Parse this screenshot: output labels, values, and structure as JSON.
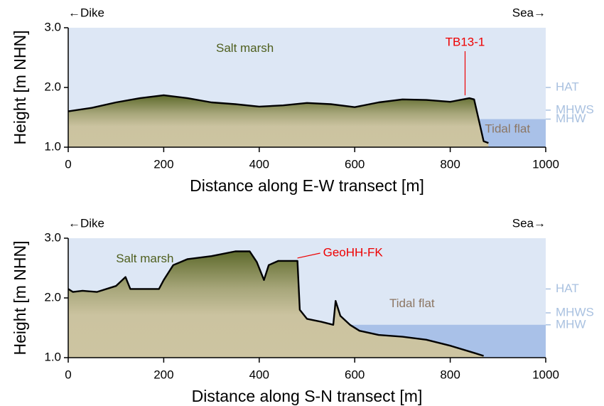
{
  "chart_data": [
    {
      "type": "area",
      "x_label": "Distance along E-W transect [m]",
      "y_label": "Height [m NHN]",
      "left_label": "←Dike",
      "right_label": "Sea→",
      "marsh_label": "Salt marsh",
      "flat_label": "Tidal flat",
      "sample": "TB13-1",
      "x": [
        0,
        50,
        100,
        150,
        200,
        250,
        300,
        350,
        400,
        450,
        500,
        550,
        600,
        650,
        700,
        750,
        800,
        840,
        850,
        860,
        870,
        880
      ],
      "values": [
        1.6,
        1.66,
        1.75,
        1.82,
        1.87,
        1.82,
        1.75,
        1.72,
        1.68,
        1.7,
        1.74,
        1.72,
        1.67,
        1.75,
        1.8,
        1.79,
        1.76,
        1.82,
        1.8,
        1.45,
        1.1,
        1.07
      ],
      "xlim": [
        0,
        1000
      ],
      "ylim": [
        1,
        3
      ],
      "xticks": [
        0,
        200,
        400,
        600,
        800,
        1000
      ],
      "yticks": [
        {
          "value": 1,
          "label": "1.0"
        },
        {
          "value": 2,
          "label": "2.0"
        },
        {
          "value": 3,
          "label": "3.0"
        }
      ],
      "tidal_levels": [
        {
          "label": "HAT",
          "value": 2.0
        },
        {
          "label": "MHWS",
          "value": 1.62
        },
        {
          "label": "MHW",
          "value": 1.47
        }
      ]
    },
    {
      "type": "area",
      "x_label": "Distance along S-N transect [m]",
      "y_label": "Height [m NHN]",
      "left_label": "←Dike",
      "right_label": "Sea→",
      "marsh_label": "Salt marsh",
      "flat_label": "Tidal flat",
      "sample": "GeoHH-FK",
      "x": [
        0,
        10,
        30,
        60,
        100,
        120,
        130,
        170,
        190,
        200,
        220,
        250,
        300,
        350,
        380,
        395,
        410,
        420,
        440,
        470,
        480,
        485,
        500,
        530,
        555,
        560,
        570,
        590,
        610,
        650,
        700,
        750,
        800,
        850,
        870
      ],
      "values": [
        2.15,
        2.1,
        2.12,
        2.1,
        2.2,
        2.35,
        2.15,
        2.15,
        2.15,
        2.3,
        2.55,
        2.65,
        2.7,
        2.78,
        2.78,
        2.6,
        2.3,
        2.55,
        2.62,
        2.62,
        2.62,
        1.8,
        1.65,
        1.6,
        1.55,
        1.95,
        1.7,
        1.55,
        1.45,
        1.38,
        1.35,
        1.3,
        1.2,
        1.08,
        1.03
      ],
      "xlim": [
        0,
        1000
      ],
      "ylim": [
        1,
        3
      ],
      "xticks": [
        0,
        200,
        400,
        600,
        800,
        1000
      ],
      "yticks": [
        {
          "value": 1,
          "label": "1.0"
        },
        {
          "value": 2,
          "label": "2.0"
        },
        {
          "value": 3,
          "label": "3.0"
        }
      ],
      "tidal_levels": [
        {
          "label": "HAT",
          "value": 2.15
        },
        {
          "label": "MHWS",
          "value": 1.75
        },
        {
          "label": "MHW",
          "value": 1.55
        }
      ]
    }
  ]
}
